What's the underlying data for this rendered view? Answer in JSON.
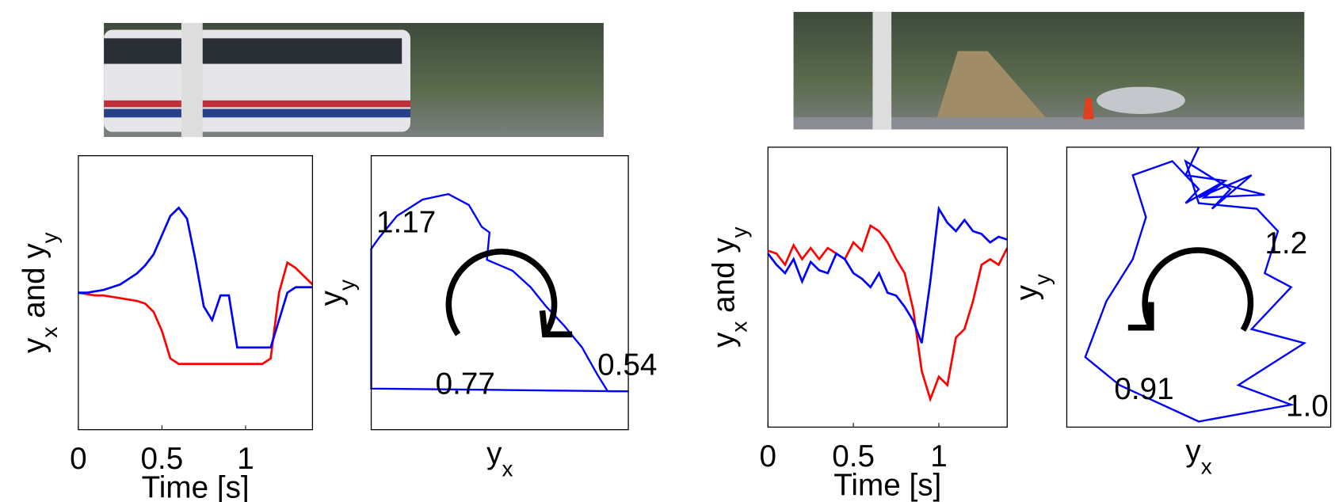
{
  "chart_data": [
    {
      "type": "line",
      "xlabel": "Time [s]",
      "ylabel": [
        {
          "text": "y"
        },
        {
          "text": "x",
          "sub": true
        },
        {
          "text": " and y"
        },
        {
          "text": "y",
          "sub": true
        }
      ],
      "x": [
        0,
        0.05,
        0.1,
        0.15,
        0.2,
        0.25,
        0.3,
        0.35,
        0.4,
        0.45,
        0.5,
        0.55,
        0.6,
        0.65,
        0.7,
        0.75,
        0.8,
        0.85,
        0.9,
        0.95,
        1.0,
        1.05,
        1.1,
        1.15,
        1.2,
        1.25,
        1.3,
        1.35,
        1.4
      ],
      "series": [
        {
          "color": "#ff0000",
          "values": [
            0.5,
            0.495,
            0.49,
            0.49,
            0.485,
            0.48,
            0.475,
            0.47,
            0.46,
            0.43,
            0.36,
            0.26,
            0.24,
            0.24,
            0.24,
            0.24,
            0.24,
            0.24,
            0.24,
            0.24,
            0.24,
            0.24,
            0.24,
            0.26,
            0.5,
            0.61,
            0.59,
            0.56,
            0.53
          ]
        },
        {
          "color": "#0000ff",
          "values": [
            0.5,
            0.5,
            0.505,
            0.51,
            0.52,
            0.53,
            0.55,
            0.57,
            0.6,
            0.64,
            0.71,
            0.78,
            0.81,
            0.77,
            0.62,
            0.45,
            0.4,
            0.49,
            0.49,
            0.3,
            0.3,
            0.3,
            0.3,
            0.3,
            0.4,
            0.5,
            0.52,
            0.52,
            0.52
          ]
        }
      ],
      "xlim": [
        0,
        1.4
      ],
      "xticks": [
        0,
        0.5,
        1
      ],
      "ylim": [
        0,
        1
      ]
    },
    {
      "type": "trajectory",
      "xlabel": [
        {
          "text": "y"
        },
        {
          "text": "x",
          "sub": true
        }
      ],
      "ylabel": [
        {
          "text": "y"
        },
        {
          "text": "y",
          "sub": true
        }
      ],
      "series": [
        {
          "color": "#0000ff",
          "x": [
            1.0,
            0.5,
            0.0,
            0.0,
            0.03,
            0.1,
            0.2,
            0.3,
            0.38,
            0.43,
            0.46,
            0.45,
            0.55,
            0.62,
            0.68,
            0.75,
            0.82,
            0.88,
            0.92,
            1.0
          ],
          "values": [
            0.14,
            0.145,
            0.15,
            0.66,
            0.7,
            0.78,
            0.84,
            0.86,
            0.82,
            0.74,
            0.72,
            0.62,
            0.58,
            0.52,
            0.45,
            0.38,
            0.3,
            0.2,
            0.14,
            0.14
          ]
        }
      ],
      "xlim": [
        0,
        1
      ],
      "ylim": [
        0,
        1
      ],
      "annotations": [
        "1.17",
        "0.77",
        "0.54"
      ]
    },
    {
      "type": "line",
      "xlabel": "Time [s]",
      "ylabel": [
        {
          "text": "y"
        },
        {
          "text": "x",
          "sub": true
        },
        {
          "text": " and y"
        },
        {
          "text": "y",
          "sub": true
        }
      ],
      "x": [
        0,
        0.05,
        0.1,
        0.15,
        0.2,
        0.25,
        0.3,
        0.35,
        0.4,
        0.45,
        0.5,
        0.55,
        0.6,
        0.65,
        0.7,
        0.75,
        0.8,
        0.85,
        0.9,
        0.95,
        1.0,
        1.05,
        1.1,
        1.15,
        1.2,
        1.25,
        1.3,
        1.35,
        1.4
      ],
      "series": [
        {
          "color": "#ff0000",
          "values": [
            0.63,
            0.62,
            0.58,
            0.65,
            0.6,
            0.64,
            0.6,
            0.64,
            0.62,
            0.6,
            0.66,
            0.63,
            0.72,
            0.7,
            0.66,
            0.6,
            0.55,
            0.42,
            0.2,
            0.1,
            0.18,
            0.15,
            0.32,
            0.35,
            0.45,
            0.58,
            0.6,
            0.58,
            0.64
          ]
        },
        {
          "color": "#0000ff",
          "values": [
            0.62,
            0.58,
            0.55,
            0.6,
            0.52,
            0.59,
            0.56,
            0.55,
            0.62,
            0.6,
            0.55,
            0.53,
            0.5,
            0.55,
            0.48,
            0.47,
            0.43,
            0.38,
            0.3,
            0.52,
            0.78,
            0.73,
            0.7,
            0.74,
            0.7,
            0.69,
            0.66,
            0.68,
            0.67
          ]
        }
      ],
      "xlim": [
        0,
        1.4
      ],
      "xticks": [
        0,
        0.5,
        1
      ],
      "ylim": [
        0,
        1
      ]
    },
    {
      "type": "trajectory",
      "xlabel": [
        {
          "text": "y"
        },
        {
          "text": "x",
          "sub": true
        }
      ],
      "ylabel": [
        {
          "text": "y"
        },
        {
          "text": "y",
          "sub": true
        }
      ],
      "series": [
        {
          "color": "#0000ff",
          "x": [
            0.5,
            0.45,
            0.6,
            0.5,
            0.7,
            0.55,
            0.62,
            0.45,
            0.5,
            0.72,
            0.8,
            0.75,
            0.85,
            0.7,
            0.9,
            0.65,
            0.85,
            0.5,
            0.2,
            0.07,
            0.15,
            0.25,
            0.3,
            0.25,
            0.4,
            0.5,
            0.45,
            0.6,
            0.52,
            0.75,
            0.58
          ],
          "values": [
            1.0,
            0.9,
            0.88,
            0.82,
            0.9,
            0.78,
            0.85,
            0.95,
            0.8,
            0.78,
            0.7,
            0.55,
            0.5,
            0.35,
            0.3,
            0.15,
            0.08,
            0.02,
            0.15,
            0.25,
            0.45,
            0.6,
            0.75,
            0.9,
            0.95,
            0.85,
            0.8,
            0.88,
            0.82,
            0.83,
            0.87
          ]
        }
      ],
      "xlim": [
        0,
        1
      ],
      "ylim": [
        0,
        1
      ],
      "annotations": [
        "1.2",
        "1.0",
        "0.91"
      ]
    }
  ]
}
